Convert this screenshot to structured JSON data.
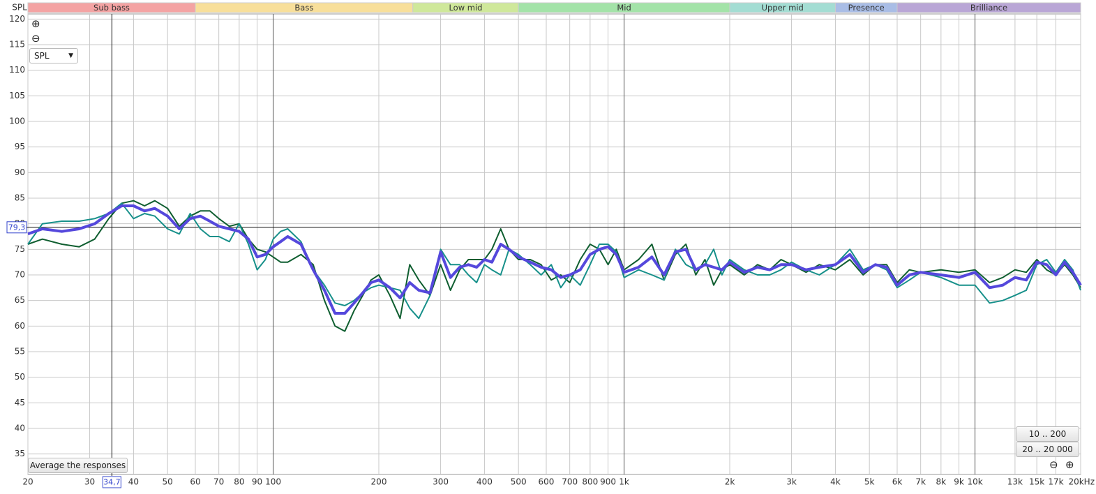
{
  "chart_data": {
    "type": "line",
    "y_label": "SPL",
    "log_x": true,
    "grid": true,
    "xlim": [
      20,
      20000
    ],
    "ylim": [
      31,
      121
    ],
    "yticks": [
      35,
      40,
      45,
      50,
      55,
      60,
      65,
      70,
      75,
      80,
      85,
      90,
      95,
      100,
      105,
      110,
      115,
      120
    ],
    "xticks": [
      20,
      30,
      40,
      50,
      60,
      70,
      80,
      90,
      100,
      200,
      300,
      400,
      500,
      600,
      700,
      800,
      900,
      {
        "value": 1000,
        "label": "1k"
      },
      {
        "value": 2000,
        "label": "2k"
      },
      {
        "value": 3000,
        "label": "3k"
      },
      {
        "value": 4000,
        "label": "4k"
      },
      {
        "value": 5000,
        "label": "5k"
      },
      {
        "value": 6000,
        "label": "6k"
      },
      {
        "value": 7000,
        "label": "7k"
      },
      {
        "value": 8000,
        "label": "8k"
      },
      {
        "value": 9000,
        "label": "9k"
      },
      {
        "value": 10000,
        "label": "10k"
      },
      {
        "value": 13000,
        "label": "13k"
      },
      {
        "value": 15000,
        "label": "15k"
      },
      {
        "value": 17000,
        "label": "17k"
      },
      {
        "value": 20000,
        "label": "20kHz"
      }
    ],
    "bands": [
      {
        "name": "Sub bass",
        "from": 20,
        "to": 60,
        "color": "#f4a3a3"
      },
      {
        "name": "Bass",
        "from": 60,
        "to": 250,
        "color": "#f8df9a"
      },
      {
        "name": "Low mid",
        "from": 250,
        "to": 500,
        "color": "#cfe89a"
      },
      {
        "name": "Mid",
        "from": 500,
        "to": 2000,
        "color": "#a3e3a8"
      },
      {
        "name": "Upper mid",
        "from": 2000,
        "to": 4000,
        "color": "#a3ddd3"
      },
      {
        "name": "Presence",
        "from": 4000,
        "to": 6000,
        "color": "#a9bde6"
      },
      {
        "name": "Brilliance",
        "from": 6000,
        "to": 20000,
        "color": "#b9a6d6"
      }
    ],
    "cursor": {
      "x": 34.7,
      "x_label": "34,7",
      "y": 79.3,
      "y_label": "79,3"
    },
    "x": [
      20,
      22,
      25,
      28,
      31,
      34,
      37,
      40,
      43,
      46,
      50,
      54,
      58,
      62,
      66,
      70,
      75,
      80,
      85,
      90,
      95,
      100,
      105,
      110,
      120,
      130,
      140,
      150,
      160,
      170,
      180,
      190,
      200,
      215,
      230,
      245,
      260,
      280,
      300,
      320,
      340,
      360,
      380,
      400,
      420,
      445,
      470,
      500,
      540,
      580,
      620,
      660,
      700,
      750,
      800,
      850,
      900,
      950,
      1000,
      1100,
      1200,
      1300,
      1400,
      1500,
      1600,
      1700,
      1800,
      1900,
      2000,
      2200,
      2400,
      2600,
      2800,
      3000,
      3300,
      3600,
      4000,
      4400,
      4800,
      5200,
      5600,
      6000,
      6500,
      7000,
      8000,
      9000,
      10000,
      11000,
      12000,
      13000,
      14000,
      15000,
      16000,
      17000,
      18000,
      19000,
      20000
    ],
    "series": [
      {
        "color": "#0f5e30",
        "width": 2,
        "values": [
          76,
          77,
          76,
          75.5,
          77,
          81,
          84,
          84.5,
          83.5,
          84.5,
          83,
          79.5,
          81.5,
          82.5,
          82.5,
          81,
          79.5,
          80,
          77,
          75,
          74.5,
          73.5,
          72.5,
          72.5,
          74,
          72,
          65,
          60,
          59,
          63,
          66,
          69,
          70,
          66,
          61.5,
          72,
          69,
          66,
          72,
          67,
          71,
          73,
          73,
          73,
          75,
          79,
          75,
          73,
          73,
          72,
          69,
          70,
          68.5,
          73,
          76,
          75,
          72,
          75,
          71,
          73,
          76,
          69,
          74,
          76,
          70,
          73,
          68,
          71,
          72,
          70,
          72,
          71,
          73,
          72,
          70.5,
          72,
          71,
          73,
          70,
          72,
          72,
          68.5,
          71,
          70.5,
          71,
          70.5,
          71,
          68.5,
          69.5,
          71,
          70.5,
          73,
          71,
          70,
          72,
          70,
          67.5
        ]
      },
      {
        "color": "#17908a",
        "width": 2,
        "values": [
          76,
          80,
          80.5,
          80.5,
          81,
          82,
          84,
          81,
          82,
          81.5,
          79,
          78,
          82,
          79,
          77.5,
          77.5,
          76.5,
          80,
          76,
          71,
          73,
          77,
          78.5,
          79,
          76.5,
          71,
          68,
          64.5,
          64,
          65,
          66.5,
          67.5,
          68,
          67.5,
          67,
          63.5,
          61.5,
          66,
          75,
          72,
          72,
          70,
          68.5,
          72,
          71,
          70,
          75,
          74,
          72,
          70,
          72,
          67.5,
          70,
          68,
          72,
          76,
          76,
          74.5,
          69.5,
          71,
          70,
          69,
          75,
          72,
          71,
          72,
          75,
          70,
          73,
          71,
          70,
          70,
          71,
          72.5,
          71,
          70,
          72,
          75,
          71,
          72,
          71,
          67.5,
          69,
          70.5,
          69.5,
          68,
          68,
          64.5,
          65,
          66,
          67,
          72,
          73,
          70.5,
          73,
          71,
          67
        ]
      },
      {
        "color": "#5548dc",
        "width": 4,
        "values": [
          78,
          79,
          78.5,
          79,
          80,
          82,
          83.5,
          83.5,
          82.5,
          83,
          81.5,
          79,
          81,
          81.5,
          80.5,
          79.5,
          79,
          78.5,
          77,
          73.5,
          74,
          75.5,
          76.5,
          77.5,
          76,
          71,
          67,
          62.5,
          62.5,
          64.5,
          66.5,
          68.5,
          69,
          67.5,
          65.5,
          68.5,
          67,
          66.5,
          74.5,
          69.5,
          71.5,
          72,
          71.5,
          73,
          72.5,
          76,
          75,
          73.5,
          72.5,
          71.5,
          71,
          69.5,
          70,
          71,
          74,
          75,
          75.5,
          74,
          70.5,
          71.5,
          73.5,
          70,
          74.5,
          75,
          71,
          72,
          71.5,
          71,
          72.5,
          70.5,
          71.5,
          71,
          72,
          72,
          71,
          71.5,
          72,
          74,
          70.5,
          72,
          71.5,
          68,
          70,
          70.5,
          70,
          69.5,
          70.5,
          67.5,
          68,
          69.5,
          69,
          72.5,
          72,
          70,
          72.5,
          70.5,
          68
        ]
      }
    ]
  },
  "controls": {
    "y_selector": "SPL",
    "average_button": "Average the responses",
    "presets": [
      "10 .. 200",
      "20 .. 20 000"
    ]
  }
}
